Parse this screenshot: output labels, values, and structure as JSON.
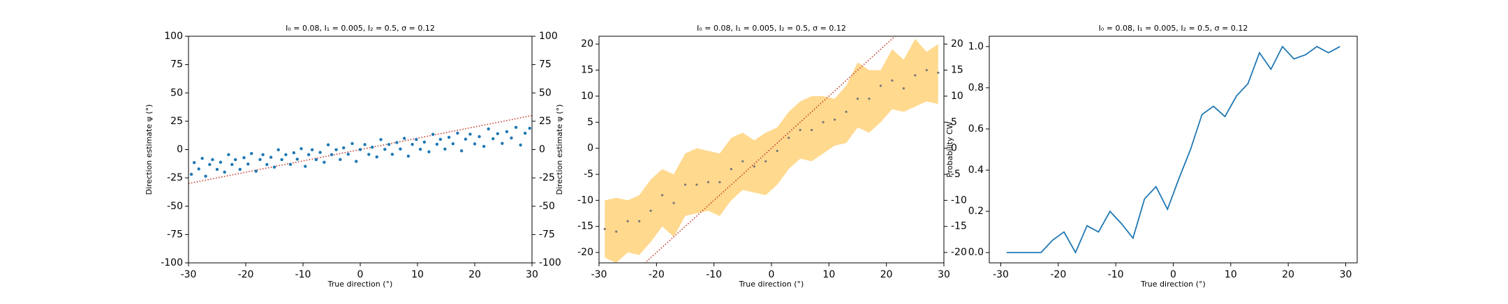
{
  "chart_data": [
    {
      "type": "scatter",
      "title": "I₀ = 0.08, I₁ = 0.005, I₂ = 0.5, σ = 0.12",
      "xlabel": "True direction (°)",
      "ylabel": "Direction estimate ψ (°)",
      "color": "#1f77b4",
      "identity_line_color": "#c0392b",
      "xlim": [
        -30,
        30
      ],
      "xticks": [
        -30,
        -20,
        -10,
        0,
        10,
        20,
        30
      ],
      "ylim": [
        -100,
        100
      ],
      "yticks": [
        -100,
        -75,
        -50,
        -25,
        0,
        25,
        50,
        75,
        100
      ],
      "y2lim": [
        -100,
        100
      ],
      "y2ticks": [
        -100,
        -75,
        -50,
        -25,
        0,
        25,
        50,
        75,
        100
      ],
      "x": [
        -29.5,
        -29,
        -28.2,
        -27.6,
        -27,
        -26.3,
        -25.8,
        -25,
        -24.4,
        -23.7,
        -23,
        -22.4,
        -21.8,
        -21,
        -20.3,
        -19.6,
        -19,
        -18.2,
        -17.5,
        -17,
        -16.3,
        -15.6,
        -15,
        -14.3,
        -13.7,
        -13,
        -12.2,
        -11.6,
        -11,
        -10.3,
        -9.6,
        -9,
        -8.4,
        -7.7,
        -7,
        -6.3,
        -5.6,
        -5,
        -4.2,
        -3.5,
        -2.9,
        -2.1,
        -1.4,
        -0.7,
        0,
        0.8,
        1.5,
        2.1,
        2.9,
        3.6,
        4.3,
        5,
        5.6,
        6.4,
        7,
        7.7,
        8.4,
        9.1,
        9.8,
        10.5,
        11.2,
        12,
        12.7,
        13.4,
        14,
        14.8,
        15.5,
        16.2,
        17,
        17.7,
        18.4,
        19.2,
        20,
        20.8,
        21.6,
        22.4,
        23.2,
        24,
        24.8,
        25.6,
        26.4,
        27.2,
        28,
        28.8,
        29.6
      ],
      "y": [
        -21.8,
        -11.5,
        -17.1,
        -7.8,
        -23.5,
        -13.2,
        -8.9,
        -17.5,
        -11.2,
        -19.9,
        -4.5,
        -13.2,
        -8.9,
        -17.5,
        -7.2,
        -12.8,
        -3.5,
        -19.1,
        -8.8,
        -4.5,
        -13.2,
        -6.8,
        -15.5,
        -0.2,
        -8.9,
        -4.5,
        -13.1,
        -2.8,
        -8.5,
        0.8,
        -14.8,
        -4.5,
        -0.2,
        -8.9,
        -2.5,
        -11.2,
        4.2,
        -4.5,
        -0.1,
        -8.8,
        1.5,
        -4.1,
        5.3,
        -10.4,
        0,
        4.4,
        -4.3,
        2.1,
        -6.5,
        8.8,
        0.2,
        4.5,
        -4.2,
        6.2,
        0.5,
        9.9,
        -5.8,
        4.6,
        8.9,
        0.3,
        6.6,
        -2,
        13.4,
        4.7,
        9,
        0.4,
        10.8,
        5.1,
        14.5,
        -1.1,
        9.2,
        13.6,
        5,
        11.4,
        2.8,
        18.2,
        9.6,
        14,
        5.4,
        15.8,
        10.2,
        19.6,
        4,
        14.4,
        18.8
      ]
    },
    {
      "type": "band",
      "title": "I₀ = 0.08, I₁ = 0.005, I₂ = 0.5, σ = 0.12",
      "xlabel": "True direction (°)",
      "ylabel": "Direction estimate ψ (°)",
      "color": "#777777",
      "band_color": "#ffd98e",
      "identity_line_color": "#c0392b",
      "xlim": [
        -30,
        30
      ],
      "xticks": [
        -30,
        -20,
        -10,
        0,
        10,
        20,
        30
      ],
      "ylim": [
        -22,
        21.5
      ],
      "yticks": [
        -20,
        -15,
        -10,
        -5,
        0,
        5,
        10,
        15,
        20
      ],
      "y2lim": [
        -22,
        21.5
      ],
      "y2ticks": [
        -20,
        -15,
        -10,
        -5,
        0,
        5,
        10,
        15,
        20
      ],
      "x": [
        -29,
        -27,
        -25,
        -23,
        -21,
        -19,
        -17,
        -15,
        -13,
        -11,
        -9,
        -7,
        -5,
        -3,
        -1,
        1,
        3,
        5,
        7,
        9,
        11,
        13,
        15,
        17,
        19,
        21,
        23,
        25,
        27,
        29
      ],
      "mean": [
        -15.5,
        -16,
        -14,
        -14,
        -12,
        -9,
        -10.5,
        -7,
        -7,
        -6.5,
        -6.5,
        -4,
        -2.5,
        -3.5,
        -2.5,
        -0.5,
        2,
        3.5,
        3.5,
        5,
        5.5,
        7,
        9.5,
        9.5,
        12,
        13,
        11.5,
        14,
        15,
        14.5
      ],
      "low": [
        -21,
        -22,
        -20,
        -20.5,
        -18,
        -15,
        -17,
        -13,
        -12.5,
        -12,
        -13,
        -10,
        -8,
        -8.5,
        -9,
        -7,
        -4,
        -2,
        -2.5,
        -1,
        0.5,
        1,
        4,
        3,
        5,
        7.5,
        7,
        8,
        9,
        8.5
      ],
      "high": [
        -10,
        -9.5,
        -10,
        -9,
        -6,
        -4,
        -5,
        -1,
        0,
        -0.5,
        -1,
        2,
        3,
        1.5,
        3,
        4,
        7,
        9,
        10,
        10,
        9.5,
        12,
        16.5,
        15,
        15,
        19,
        17,
        21,
        18.5,
        20
      ]
    },
    {
      "type": "line",
      "title": "I₀ = 0.08, I₁ = 0.005, I₂ = 0.5, σ = 0.12",
      "xlabel": "True direction (°)",
      "ylabel": "Probability CW",
      "color": "#1f77b4",
      "xlim": [
        -32,
        32
      ],
      "xticks": [
        -30,
        -20,
        -10,
        0,
        10,
        20,
        30
      ],
      "ylim": [
        -0.05,
        1.05
      ],
      "yticks": [
        {
          "value": 0,
          "label": "0.0"
        },
        {
          "value": 0.2,
          "label": "0.2"
        },
        {
          "value": 0.4,
          "label": "0.4"
        },
        {
          "value": 0.6,
          "label": "0.6"
        },
        {
          "value": 0.8,
          "label": "0.8"
        },
        {
          "value": 1,
          "label": "1.0"
        }
      ],
      "x": [
        -29,
        -27,
        -25,
        -23,
        -21,
        -19,
        -17,
        -15,
        -13,
        -11,
        -9,
        -7,
        -5,
        -3,
        -1,
        1,
        3,
        5,
        7,
        9,
        11,
        13,
        15,
        17,
        19,
        21,
        23,
        25,
        27,
        29
      ],
      "values": [
        0,
        0,
        0,
        0,
        0.06,
        0.1,
        0,
        0.13,
        0.1,
        0.2,
        0.14,
        0.07,
        0.26,
        0.32,
        0.21,
        0.36,
        0.5,
        0.67,
        0.71,
        0.66,
        0.76,
        0.82,
        0.97,
        0.89,
        1,
        0.94,
        0.96,
        1,
        0.97,
        1
      ]
    }
  ]
}
